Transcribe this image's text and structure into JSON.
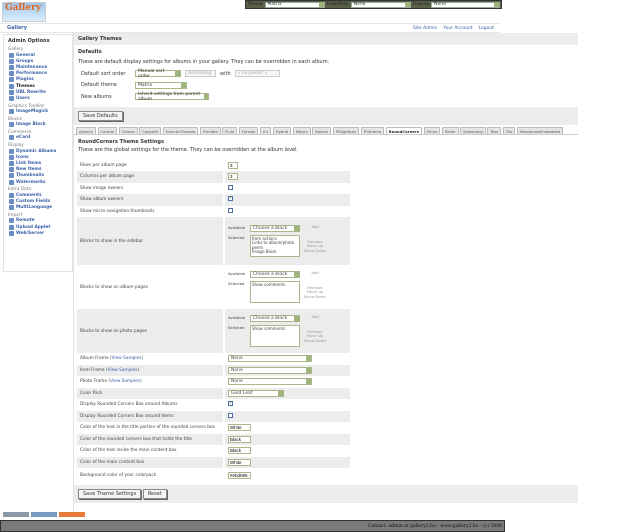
{
  "topbar": {
    "theme_label": "Theme",
    "theme_value": "Matrix",
    "colorpack_label": "ColorPack",
    "colorpack_value": "None",
    "frames_label": "Frames",
    "frames_value": "None"
  },
  "logo_text": "Gallery",
  "breadcrumb": "Gallery",
  "top_links": [
    "Site Admin",
    "Your Account",
    "Logout"
  ],
  "sidebar": {
    "title": "Admin Options",
    "groups": [
      {
        "name": "Gallery",
        "items": [
          "General",
          "Groups",
          "Maintenance",
          "Performance",
          "Plugins",
          "Themes",
          "URL Rewrite",
          "Users"
        ]
      },
      {
        "name": "Graphics Toolkits",
        "items": [
          "ImageMagick"
        ]
      },
      {
        "name": "Blocks",
        "items": [
          "Image Block"
        ]
      },
      {
        "name": "Commerce",
        "items": [
          "eCard"
        ]
      },
      {
        "name": "Display",
        "items": [
          "Dynamic Albums",
          "Icons",
          "Link Items",
          "New Items",
          "Thumbnails",
          "Watermarks"
        ]
      },
      {
        "name": "Extra Data",
        "items": [
          "Comments",
          "Custom Fields",
          "MultiLanguage"
        ]
      },
      {
        "name": "Import",
        "items": [
          "Remote",
          "Upload Applet",
          "Web/Server"
        ]
      }
    ]
  },
  "main": {
    "header": "Gallery Themes",
    "defaults": {
      "title": "Defaults",
      "description": "These are default display settings for albums in your gallery. They can be overridden in each album.",
      "sort_label": "Default sort order",
      "sort_value": "Manual sort order",
      "sort_dir": "Ascending",
      "with_label": "with",
      "with_value": "« no preset »",
      "theme_label": "Default theme",
      "theme_value": "Matrix",
      "new_albums_label": "New albums",
      "new_albums_value": "Inherit settings from parent album",
      "save_button": "Save Defaults"
    },
    "tabs": [
      "Ajaxian",
      "Carbon",
      "Classic",
      "Copyleft",
      "EclecticThreads",
      "Flexible",
      "Fluid",
      "Forsale",
      "G1",
      "Hybrid",
      "Matrix",
      "Nature",
      "PGlightbox",
      "PGtheme",
      "RoundCorners",
      "Siriux",
      "Slider",
      "Splashang",
      "Tass",
      "Tile",
      "WordpressEmbedded"
    ],
    "active_tab": "RoundCorners",
    "theme_settings": {
      "title": "RoundCorners Theme Settings",
      "description": "These are the global settings for the theme. They can be overridden at the album level.",
      "rows_label": "Rows per album page",
      "rows_value": "3",
      "cols_label": "Columns per album page",
      "cols_value": "3",
      "image_owners_label": "Show image owners",
      "image_owners": false,
      "album_owners_label": "Show album owners",
      "album_owners": true,
      "micro_nav_label": "Show micro navigation thumbnails",
      "micro_nav": false,
      "block_available_label": "Available",
      "block_selected_label": "Selected",
      "block_choose": "Choose a block",
      "add": "Add",
      "remove": "Remove",
      "move_up": "Move Up",
      "move_down": "Move Down",
      "sidebar_blocks_label": "Blocks to show in the sidebar",
      "sidebar_blocks": [
        "Item actions",
        "Links to album/photo peers",
        "Image Block"
      ],
      "album_blocks_label": "Blocks to show on album pages",
      "album_blocks": [
        "Show comments"
      ],
      "photo_blocks_label": "Blocks to show on photo pages",
      "photo_blocks": [
        "Show comments"
      ],
      "view_samples": "View Samples",
      "album_frame_label": "Album Frame",
      "album_frame": "None",
      "item_frame_label": "Item Frame",
      "item_frame": "None",
      "photo_frame_label": "Photo Frame",
      "photo_frame": "None",
      "color_pack_label": "Color Pack",
      "color_pack": "Gold Leaf",
      "rc_albums_label": "Display Rounded Corners Box around Albums",
      "rc_albums": true,
      "rc_items_label": "Display Rounded Corners Box around Items",
      "rc_items": false,
      "title_text_color_label": "Color of the text in the title portion of the rounded corners box",
      "title_text_color": "White",
      "title_box_color_label": "Color of the rounded corners box that holds the title",
      "title_box_color": "Black",
      "content_text_color_label": "Color of the text inside the main content box",
      "content_text_color": "Black",
      "content_box_color_label": "Color of the main content box",
      "content_box_color": "White",
      "bg_color_label": "Background color of your colorpack",
      "bg_color": "#ebd095",
      "save_button": "Save Theme Settings",
      "reset_button": "Reset"
    }
  },
  "footer": "Contact: admin at gallery2.hu - www.gallery2.hu - (c) 2006"
}
